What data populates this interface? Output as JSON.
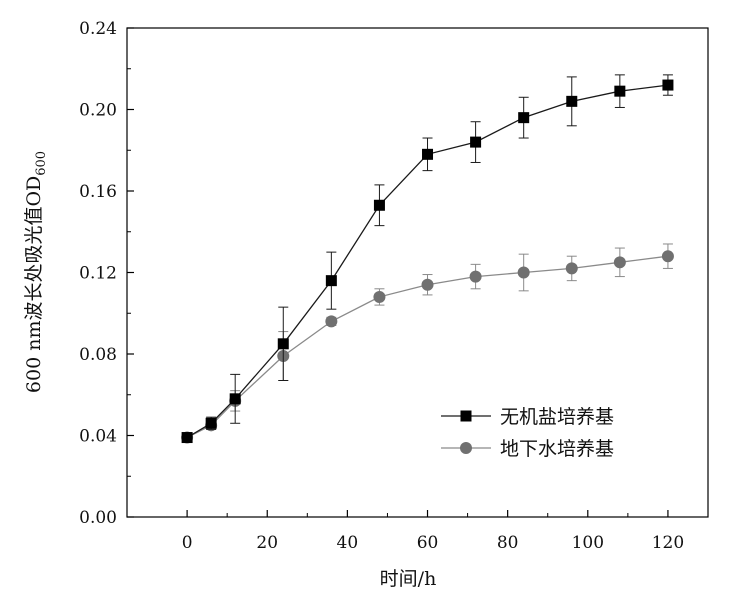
{
  "chart_data": {
    "type": "line",
    "xlabel": "时间/h",
    "ylabel": "600 nm波长处吸光值OD",
    "ylabel_subscript": "600",
    "xlim": [
      -15,
      130
    ],
    "ylim": [
      0,
      0.24
    ],
    "xticks": [
      0,
      20,
      40,
      60,
      80,
      100,
      120
    ],
    "xtick_labels": [
      "0",
      "20",
      "40",
      "60",
      "80",
      "100",
      "120"
    ],
    "yticks": [
      0,
      0.04,
      0.08,
      0.12,
      0.16,
      0.2,
      0.24
    ],
    "ytick_labels": [
      "0.00",
      "0.04",
      "0.08",
      "0.12",
      "0.16",
      "0.20",
      "0.24"
    ],
    "grid": false,
    "legend_position": "bottom-right",
    "series": [
      {
        "name": "无机盐培养基",
        "marker": "square",
        "color": "#000000",
        "line_color": "#1a1a1a",
        "x": [
          0,
          6,
          12,
          24,
          36,
          48,
          60,
          72,
          84,
          96,
          108,
          120
        ],
        "y": [
          0.039,
          0.046,
          0.058,
          0.085,
          0.116,
          0.153,
          0.178,
          0.184,
          0.196,
          0.204,
          0.209,
          0.212
        ],
        "err": [
          0.001,
          0.003,
          0.012,
          0.018,
          0.014,
          0.01,
          0.008,
          0.01,
          0.01,
          0.012,
          0.008,
          0.005
        ]
      },
      {
        "name": "地下水培养基",
        "marker": "circle",
        "color": "#707070",
        "line_color": "#8a8a8a",
        "x": [
          0,
          6,
          12,
          24,
          36,
          48,
          60,
          72,
          84,
          96,
          108,
          120
        ],
        "y": [
          0.039,
          0.045,
          0.057,
          0.079,
          0.096,
          0.108,
          0.114,
          0.118,
          0.12,
          0.122,
          0.125,
          0.128
        ],
        "err": [
          0.001,
          0.002,
          0.005,
          0.012,
          0.002,
          0.004,
          0.005,
          0.006,
          0.009,
          0.006,
          0.007,
          0.006
        ]
      }
    ]
  }
}
